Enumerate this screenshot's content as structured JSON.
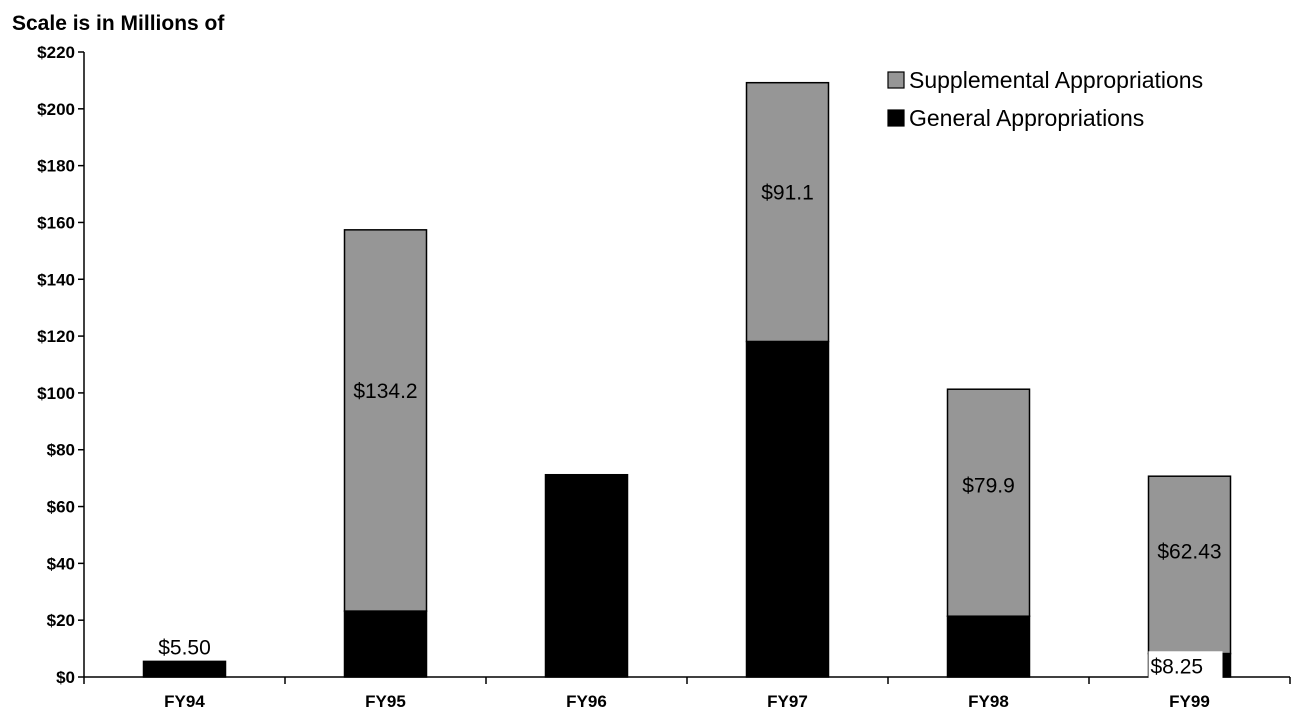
{
  "chart_data": {
    "type": "bar",
    "stacked": true,
    "ylabel": "Scale is in Millions of",
    "categories": [
      "FY94",
      "FY95",
      "FY96",
      "FY97",
      "FY98",
      "FY99"
    ],
    "ylim": [
      0,
      220
    ],
    "yticks": [
      {
        "value": 0,
        "label": "$0"
      },
      {
        "value": 20,
        "label": "$20"
      },
      {
        "value": 40,
        "label": "$40"
      },
      {
        "value": 60,
        "label": "$60"
      },
      {
        "value": 80,
        "label": "$80"
      },
      {
        "value": 100,
        "label": "$100"
      },
      {
        "value": 120,
        "label": "$120"
      },
      {
        "value": 140,
        "label": "$140"
      },
      {
        "value": 160,
        "label": "$160"
      },
      {
        "value": 180,
        "label": "$180"
      },
      {
        "value": 200,
        "label": "$200"
      },
      {
        "value": 220,
        "label": "$220"
      }
    ],
    "series": [
      {
        "name": "General Appropriations",
        "color": "#000000",
        "values": [
          5.5,
          23.2,
          71.2,
          118.1,
          21.4,
          8.25
        ],
        "labels": [
          "$5.50",
          null,
          null,
          null,
          null,
          "$8.25"
        ]
      },
      {
        "name": "Supplemental Appropriations",
        "color": "#969696",
        "values": [
          0,
          134.2,
          0,
          91.1,
          79.9,
          62.43
        ],
        "labels": [
          null,
          "$134.2",
          null,
          "$91.1",
          "$79.9",
          "$62.43"
        ]
      }
    ],
    "legend": {
      "position": "top-right",
      "order": [
        "Supplemental Appropriations",
        "General Appropriations"
      ]
    },
    "grid": false
  }
}
